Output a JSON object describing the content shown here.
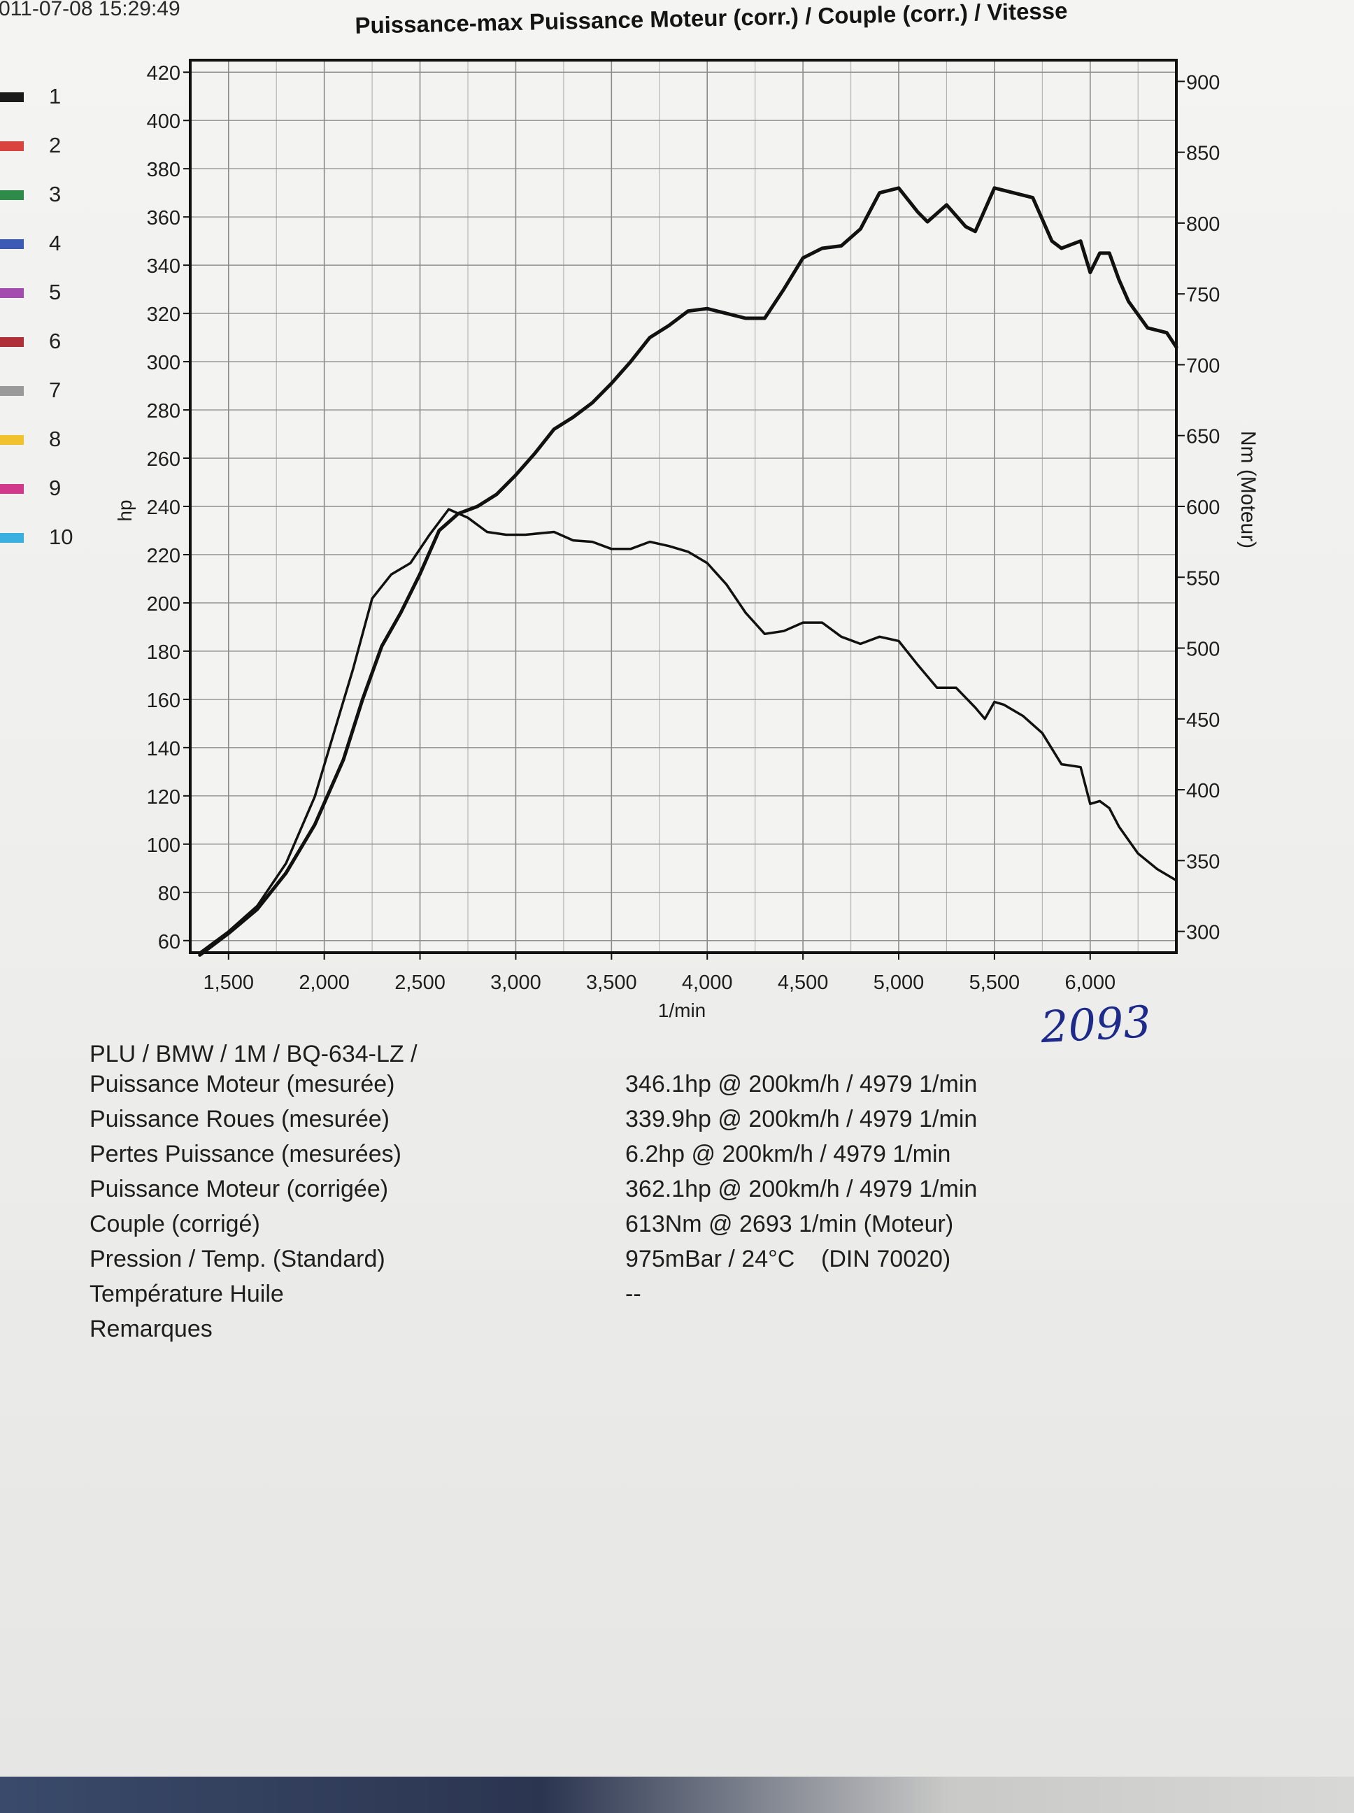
{
  "header": {
    "timestamp": "011-07-08 15:29:49"
  },
  "legend": [
    {
      "label": "1",
      "color": "#1a1a1a"
    },
    {
      "label": "2",
      "color": "#d9443f"
    },
    {
      "label": "3",
      "color": "#2e8b4a"
    },
    {
      "label": "4",
      "color": "#3b5bb5"
    },
    {
      "label": "5",
      "color": "#a44bb0"
    },
    {
      "label": "6",
      "color": "#b0303a"
    },
    {
      "label": "7",
      "color": "#9a9a9a"
    },
    {
      "label": "8",
      "color": "#f2c12e"
    },
    {
      "label": "9",
      "color": "#d0398c"
    },
    {
      "label": "10",
      "color": "#3ab0e0"
    }
  ],
  "chart_data": {
    "type": "line",
    "title": "Puissance-max Puissance Moteur (corr.) / Couple (corr.) / Vitesse",
    "xlabel": "1/min",
    "ylabel_left": "hp",
    "ylabel_right": "Nm (Moteur)",
    "xlim": [
      1300,
      6450
    ],
    "ylim_left": [
      55,
      425
    ],
    "ylim_right": [
      285,
      915
    ],
    "x_ticks": [
      1500,
      2000,
      2500,
      3000,
      3500,
      4000,
      4500,
      5000,
      5500,
      6000
    ],
    "x_tick_labels": [
      "1,500",
      "2,000",
      "2,500",
      "3,000",
      "3,500",
      "4,000",
      "4,500",
      "5,000",
      "5,500",
      "6,000"
    ],
    "y_left_ticks": [
      60,
      80,
      100,
      120,
      140,
      160,
      180,
      200,
      220,
      240,
      260,
      280,
      300,
      320,
      340,
      360,
      380,
      400,
      420
    ],
    "y_right_ticks": [
      300,
      350,
      400,
      450,
      500,
      550,
      600,
      650,
      700,
      750,
      800,
      850,
      900
    ],
    "grid": true,
    "series": [
      {
        "name": "Puissance Moteur (corr.)",
        "axis": "left",
        "points": [
          [
            1350,
            54
          ],
          [
            1500,
            63
          ],
          [
            1650,
            73
          ],
          [
            1800,
            88
          ],
          [
            1950,
            108
          ],
          [
            2100,
            135
          ],
          [
            2200,
            160
          ],
          [
            2300,
            182
          ],
          [
            2400,
            196
          ],
          [
            2500,
            212
          ],
          [
            2600,
            230
          ],
          [
            2700,
            237
          ],
          [
            2800,
            240
          ],
          [
            2900,
            245
          ],
          [
            3000,
            253
          ],
          [
            3100,
            262
          ],
          [
            3200,
            272
          ],
          [
            3300,
            277
          ],
          [
            3400,
            283
          ],
          [
            3500,
            291
          ],
          [
            3600,
            300
          ],
          [
            3700,
            310
          ],
          [
            3800,
            315
          ],
          [
            3900,
            321
          ],
          [
            4000,
            322
          ],
          [
            4100,
            320
          ],
          [
            4200,
            318
          ],
          [
            4300,
            318
          ],
          [
            4400,
            330
          ],
          [
            4500,
            343
          ],
          [
            4600,
            347
          ],
          [
            4700,
            348
          ],
          [
            4800,
            355
          ],
          [
            4900,
            370
          ],
          [
            5000,
            372
          ],
          [
            5100,
            362
          ],
          [
            5150,
            358
          ],
          [
            5250,
            365
          ],
          [
            5350,
            356
          ],
          [
            5400,
            354
          ],
          [
            5500,
            372
          ],
          [
            5600,
            370
          ],
          [
            5700,
            368
          ],
          [
            5800,
            350
          ],
          [
            5850,
            347
          ],
          [
            5950,
            350
          ],
          [
            6000,
            337
          ],
          [
            6050,
            345
          ],
          [
            6100,
            345
          ],
          [
            6150,
            334
          ],
          [
            6200,
            325
          ],
          [
            6300,
            314
          ],
          [
            6400,
            312
          ],
          [
            6450,
            306
          ]
        ]
      },
      {
        "name": "Couple (corr.)",
        "axis": "right",
        "points": [
          [
            1350,
            285
          ],
          [
            1500,
            300
          ],
          [
            1650,
            318
          ],
          [
            1800,
            348
          ],
          [
            1950,
            395
          ],
          [
            2050,
            440
          ],
          [
            2150,
            485
          ],
          [
            2250,
            535
          ],
          [
            2350,
            552
          ],
          [
            2450,
            560
          ],
          [
            2550,
            580
          ],
          [
            2650,
            598
          ],
          [
            2750,
            592
          ],
          [
            2850,
            582
          ],
          [
            2950,
            580
          ],
          [
            3050,
            580
          ],
          [
            3200,
            582
          ],
          [
            3300,
            576
          ],
          [
            3400,
            575
          ],
          [
            3500,
            570
          ],
          [
            3600,
            570
          ],
          [
            3700,
            575
          ],
          [
            3800,
            572
          ],
          [
            3900,
            568
          ],
          [
            4000,
            560
          ],
          [
            4100,
            545
          ],
          [
            4200,
            525
          ],
          [
            4300,
            510
          ],
          [
            4400,
            512
          ],
          [
            4500,
            518
          ],
          [
            4600,
            518
          ],
          [
            4700,
            508
          ],
          [
            4800,
            503
          ],
          [
            4900,
            508
          ],
          [
            5000,
            505
          ],
          [
            5100,
            488
          ],
          [
            5200,
            472
          ],
          [
            5300,
            472
          ],
          [
            5400,
            458
          ],
          [
            5450,
            450
          ],
          [
            5500,
            462
          ],
          [
            5550,
            460
          ],
          [
            5650,
            452
          ],
          [
            5750,
            440
          ],
          [
            5850,
            418
          ],
          [
            5950,
            416
          ],
          [
            6000,
            390
          ],
          [
            6050,
            392
          ],
          [
            6100,
            387
          ],
          [
            6150,
            374
          ],
          [
            6250,
            355
          ],
          [
            6350,
            344
          ],
          [
            6450,
            336
          ]
        ]
      }
    ]
  },
  "report": {
    "vehicle": "PLU / BMW / 1M / BQ-634-LZ /",
    "rows": [
      {
        "label": "Puissance Moteur (mesurée)",
        "value": "346.1hp @ 200km/h / 4979 1/min"
      },
      {
        "label": "Puissance Roues (mesurée)",
        "value": "339.9hp @ 200km/h / 4979 1/min"
      },
      {
        "label": "Pertes Puissance (mesurées)",
        "value": "6.2hp @ 200km/h / 4979 1/min"
      },
      {
        "label": "Puissance Moteur (corrigée)",
        "value": "362.1hp @ 200km/h / 4979 1/min"
      },
      {
        "label": "Couple (corrigé)",
        "value": "613Nm @ 2693 1/min (Moteur)"
      },
      {
        "label": "Pression / Temp. (Standard)",
        "value": "975mBar / 24°C    (DIN 70020)"
      },
      {
        "label": "Température Huile",
        "value": "--"
      },
      {
        "label": "Remarques",
        "value": ""
      }
    ],
    "handwritten_note": "2093"
  }
}
